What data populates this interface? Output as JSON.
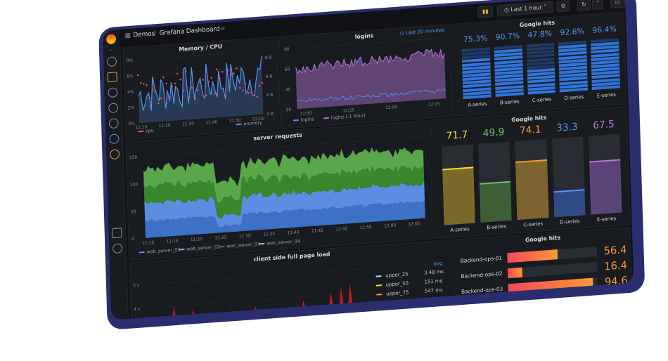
{
  "header": {
    "breadcrumb_folder": "Demos",
    "breadcrumb_sep": "/",
    "breadcrumb_dashboard": "Grafana Dashboard",
    "time_range": "Last 1 hour"
  },
  "panels": {
    "memory_cpu": {
      "title": "Memory / CPU",
      "left_ticks": [
        "8%",
        "6%",
        "4%",
        "2%",
        "0%"
      ],
      "right_ticks": [
        "8 B",
        "6 B",
        "4 B",
        "2 B"
      ],
      "x_ticks": [
        "11:10",
        "11:20",
        "11:30",
        "11:40",
        "11:50",
        "12:00"
      ],
      "legend": [
        "cpu",
        "memory"
      ]
    },
    "logins": {
      "title": "logins",
      "tag": "Last 20 minutes",
      "y_ticks": [
        "80",
        "60",
        "40",
        "20"
      ],
      "x_ticks": [
        "11:50",
        "11:55",
        "12:00",
        "12:05"
      ],
      "legend": [
        "logins",
        "logins (-1 hour)"
      ]
    },
    "hits_top": {
      "title": "Google hits",
      "values": [
        "75.3%",
        "90.7%",
        "47.8%",
        "92.6%",
        "96.4%"
      ],
      "levels": [
        0.753,
        0.907,
        0.478,
        0.926,
        0.964
      ],
      "categories": [
        "A-series",
        "B-series",
        "C-series",
        "D-series",
        "E-series"
      ]
    },
    "server_requests": {
      "title": "server requests",
      "y_ticks": [
        "150",
        "100",
        "50",
        "0"
      ],
      "x_ticks": [
        "11:10",
        "11:15",
        "11:20",
        "11:25",
        "11:30",
        "11:35",
        "11:40",
        "11:45",
        "11:50",
        "11:55",
        "12:00",
        "12:05"
      ],
      "legend": [
        "web_server_01",
        "web_server_02",
        "web_server_03",
        "web_server_04"
      ]
    },
    "hits_mid": {
      "title": "Google hits",
      "values": [
        "71.7",
        "49.9",
        "74.1",
        "33.3",
        "67.5"
      ],
      "categories": [
        "A-series",
        "B-series",
        "C-series",
        "D-series",
        "E-series"
      ],
      "max": 100
    },
    "page_load": {
      "title": "client side full page load",
      "y_ticks": [
        "5 s",
        "4 s"
      ],
      "col_header": "avg",
      "rows": [
        {
          "name": "upper_25",
          "value": "3.48 ms"
        },
        {
          "name": "upper_50",
          "value": "151 ms"
        },
        {
          "name": "upper_75",
          "value": "547 ms"
        },
        {
          "name": "upper_90",
          "value": "1.07 s"
        }
      ]
    },
    "hits_bottom": {
      "title": "Google hits",
      "rows": [
        {
          "name": "Backend-ops-01",
          "value": "56.4"
        },
        {
          "name": "Backend-ops-02",
          "value": "16.4"
        },
        {
          "name": "Backend-ops-03",
          "value": "94.6"
        }
      ],
      "max": 100
    }
  },
  "colors": {
    "green": "#73bf69",
    "yellow": "#fade2a",
    "blue": "#5794f2",
    "orange": "#ff9830",
    "red": "#f2495c",
    "purple": "#b877d9"
  }
}
